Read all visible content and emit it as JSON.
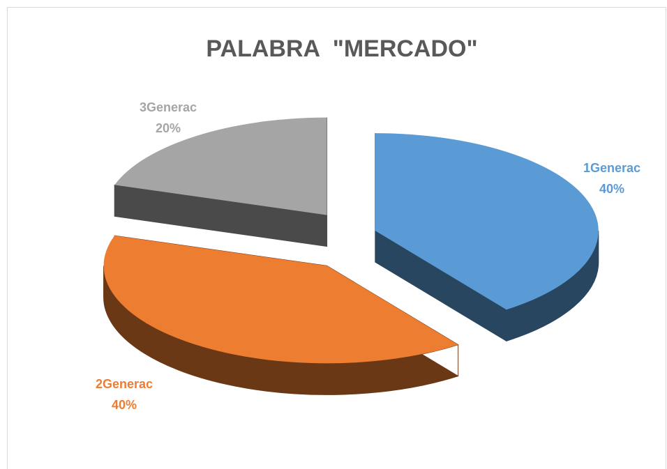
{
  "chart_data": {
    "type": "pie",
    "title": "PALABRA  \"MERCADO\"",
    "categories": [
      "1Generac",
      "2Generac",
      "3Generac"
    ],
    "values": [
      40,
      40,
      20
    ],
    "value_labels": [
      "40%",
      "40%",
      "20%"
    ],
    "colors": [
      "#5b9bd5",
      "#ed7d31",
      "#a5a5a5"
    ]
  }
}
